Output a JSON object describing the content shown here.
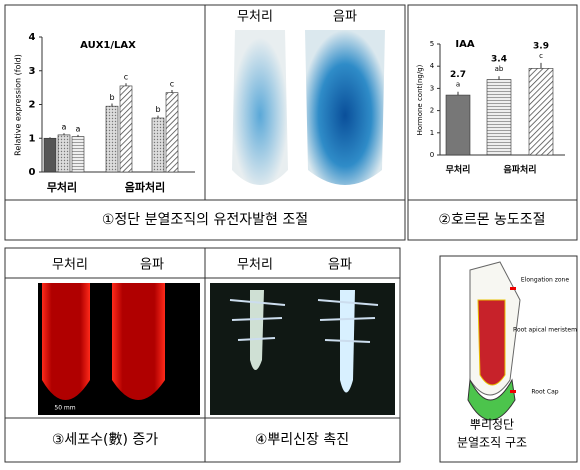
{
  "panel1": {
    "image_headers": [
      "무처리",
      "음파"
    ],
    "caption": "①정단 분열조직의 유전자발현 조절",
    "chart": {
      "type": "bar",
      "title": "AUX1/LAX",
      "y_label": "Relative expression (fold)",
      "ylim": [
        0,
        4
      ],
      "yticks": [
        0,
        1,
        2,
        3,
        4
      ],
      "groups": [
        {
          "label": "무처리",
          "values": [
            1.0,
            1.1,
            1.05
          ],
          "errors": [
            0.03,
            0.05,
            0.05
          ],
          "letters": [
            null,
            "a",
            "a"
          ]
        },
        {
          "label": "음파처리",
          "values": [
            1.95,
            2.55,
            1.6,
            2.35
          ],
          "errors": [
            0.08,
            0.08,
            0.07,
            0.08
          ],
          "letters": [
            "b",
            "c",
            "b",
            "c"
          ]
        }
      ]
    }
  },
  "panel2": {
    "caption": "②호르몬 농도조절",
    "chart": {
      "type": "bar",
      "title": "IAA",
      "y_label": "Hormone cont(ng/g)",
      "ylim": [
        0,
        5
      ],
      "yticks": [
        0,
        1,
        2,
        3,
        4,
        5
      ],
      "categories": [
        "무처리",
        "음파처리",
        null
      ],
      "values": [
        2.7,
        3.4,
        3.9
      ],
      "errors": [
        0.15,
        0.15,
        0.25
      ],
      "letters": [
        "a",
        "ab",
        "c"
      ]
    }
  },
  "panel3": {
    "image_headers": [
      "무처리",
      "음파"
    ],
    "scale_label": "50 mm",
    "caption": "③세포수(數) 증가"
  },
  "panel4": {
    "image_headers": [
      "무처리",
      "음파"
    ],
    "caption": "④뿌리신장 촉진"
  },
  "panel5": {
    "labels": [
      "Elongation zone",
      "Root apical meristem",
      "Root Cap"
    ],
    "caption": [
      "뿌리정단",
      "분열조직 구조"
    ]
  }
}
